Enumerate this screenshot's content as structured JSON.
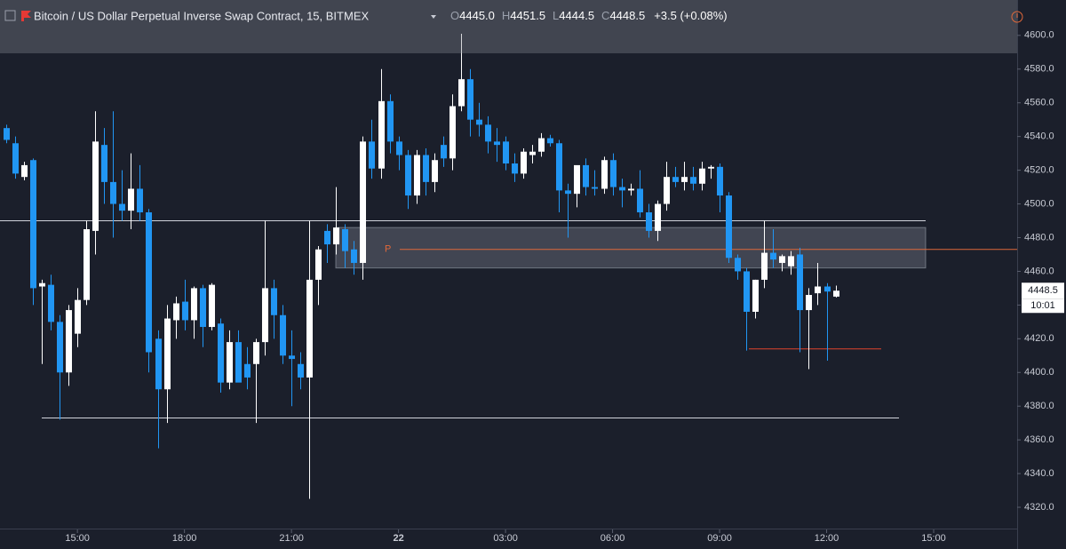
{
  "chart_data": {
    "type": "candlestick",
    "title": "Bitcoin / US Dollar Perpetual Inverse Swap Contract, 15, BITMEX",
    "header": {
      "o": "O",
      "open": "4445.0",
      "h": "H",
      "high": "4451.5",
      "l": "L",
      "low": "4444.5",
      "c": "C",
      "close": "4448.5",
      "change": "+3.5 (+0.08%)"
    },
    "x": [
      13,
      13.25,
      13.5,
      13.75,
      14,
      14.25,
      14.5,
      14.75,
      15,
      15.25,
      15.5,
      15.75,
      16,
      16.25,
      16.5,
      16.75,
      17,
      17.25,
      17.5,
      17.75,
      18,
      18.25,
      18.5,
      18.75,
      19,
      19.25,
      19.5,
      19.75,
      20,
      20.25,
      20.5,
      20.75,
      21,
      21.25,
      21.5,
      21.75,
      22,
      22.25,
      22.5,
      22.75,
      23,
      23.25,
      23.5,
      23.75,
      24,
      24.25,
      24.5,
      24.75,
      25,
      25.25,
      25.5,
      25.75,
      26,
      26.25,
      26.5,
      26.75,
      27,
      27.25,
      27.5,
      27.75,
      28,
      28.25,
      28.5,
      28.75,
      29,
      29.25,
      29.5,
      29.75,
      30,
      30.25,
      30.5,
      30.75,
      31,
      31.25,
      31.5,
      31.75,
      32,
      32.25,
      32.5,
      32.75,
      33,
      33.25,
      33.5,
      33.75,
      34,
      34.25,
      34.5,
      34.75,
      35,
      35.25,
      35.5,
      35.75,
      36,
      36.25
    ],
    "open": [
      4545,
      4536,
      4516,
      4526,
      4451,
      4452,
      4430,
      4400,
      4423,
      4443,
      4484,
      4535,
      4513,
      4500,
      4496,
      4509,
      4495,
      4420,
      4390,
      4431,
      4442,
      4431,
      4450,
      4427,
      4429,
      4394,
      4418,
      4405,
      4405,
      4418,
      4450,
      4434,
      4410,
      4405,
      4397,
      4455,
      4484,
      4476,
      4485,
      4473,
      4465,
      4537,
      4521,
      4561,
      4537,
      4529,
      4505,
      4529,
      4513,
      4535,
      4527,
      4558,
      4574,
      4550,
      4547,
      4537,
      4537,
      4524,
      4518,
      4529,
      4531,
      4539,
      4536,
      4508,
      4506,
      4523,
      4510,
      4509,
      4526,
      4510,
      4508,
      4509,
      4495,
      4484,
      4500,
      4516,
      4513,
      4516,
      4512,
      4521,
      4522,
      4505,
      4468,
      4460,
      4436,
      4455,
      4471,
      4465,
      4463,
      4470,
      4437,
      4447,
      4451,
      4445
    ],
    "high": [
      4547,
      4540,
      4525,
      4527,
      4455,
      4458,
      4434,
      4440,
      4450,
      4490,
      4555,
      4545,
      4555,
      4520,
      4530,
      4523,
      4497,
      4425,
      4440,
      4445,
      4455,
      4451,
      4452,
      4453,
      4432,
      4425,
      4425,
      4415,
      4420,
      4490,
      4455,
      4440,
      4425,
      4412,
      4490,
      4475,
      4488,
      4510,
      4488,
      4478,
      4540,
      4550,
      4580,
      4565,
      4540,
      4532,
      4532,
      4533,
      4530,
      4540,
      4565,
      4601,
      4580,
      4560,
      4552,
      4545,
      4540,
      4530,
      4533,
      4535,
      4542,
      4541,
      4538,
      4512,
      4520,
      4527,
      4520,
      4528,
      4530,
      4515,
      4512,
      4520,
      4500,
      4502,
      4525,
      4522,
      4525,
      4522,
      4525,
      4523,
      4524,
      4507,
      4470,
      4462,
      4455,
      4490,
      4485,
      4470,
      4472,
      4474,
      4450,
      4465,
      4453,
      4451.5
    ],
    "low": [
      4536,
      4515,
      4514,
      4440,
      4405,
      4425,
      4372,
      4392,
      4415,
      4440,
      4470,
      4500,
      4480,
      4490,
      4485,
      4490,
      4400,
      4355,
      4370,
      4420,
      4425,
      4420,
      4415,
      4425,
      4388,
      4390,
      4395,
      4390,
      4370,
      4410,
      4420,
      4405,
      4380,
      4390,
      4325,
      4440,
      4465,
      4470,
      4462,
      4458,
      4455,
      4515,
      4515,
      4530,
      4520,
      4497,
      4500,
      4505,
      4507,
      4522,
      4520,
      4555,
      4540,
      4540,
      4530,
      4525,
      4520,
      4513,
      4515,
      4524,
      4528,
      4534,
      4495,
      4480,
      4498,
      4505,
      4505,
      4506,
      4505,
      4498,
      4505,
      4492,
      4480,
      4478,
      4496,
      4510,
      4508,
      4508,
      4508,
      4515,
      4495,
      4465,
      4455,
      4413,
      4432,
      4450,
      4462,
      4460,
      4458,
      4412,
      4402,
      4440,
      4407,
      4444.5
    ],
    "close": [
      4538,
      4518,
      4523,
      4450,
      4453,
      4430,
      4400,
      4437,
      4443,
      4485,
      4537,
      4513,
      4500,
      4496,
      4509,
      4495,
      4412,
      4390,
      4432,
      4441,
      4431,
      4450,
      4427,
      4452,
      4394,
      4418,
      4394,
      4397,
      4418,
      4450,
      4434,
      4410,
      4408,
      4397,
      4455,
      4473,
      4476,
      4486,
      4472,
      4465,
      4537,
      4521,
      4561,
      4537,
      4529,
      4505,
      4529,
      4513,
      4526,
      4527,
      4558,
      4574,
      4550,
      4547,
      4537,
      4535,
      4524,
      4518,
      4531,
      4531,
      4539,
      4536,
      4508,
      4506,
      4523,
      4510,
      4509,
      4526,
      4510,
      4508,
      4509,
      4495,
      4484,
      4500,
      4516,
      4513,
      4516,
      4512,
      4521,
      4522,
      4505,
      4468,
      4460,
      4436,
      4455,
      4471,
      4467,
      4469,
      4469,
      4437,
      4446,
      4451,
      4448,
      4448.5
    ],
    "up_color": "#ffffff",
    "down_color": "#2196f3",
    "xlim": [
      12.83,
      41.34
    ],
    "xticks": [
      {
        "value": 15,
        "label": "15:00"
      },
      {
        "value": 18,
        "label": "18:00"
      },
      {
        "value": 21,
        "label": "21:00"
      },
      {
        "value": 24,
        "label": "22"
      },
      {
        "value": 27,
        "label": "03:00"
      },
      {
        "value": 30,
        "label": "06:00"
      },
      {
        "value": 33,
        "label": "09:00"
      },
      {
        "value": 36,
        "label": "12:00"
      },
      {
        "value": 39,
        "label": "15:00"
      }
    ],
    "ylim": [
      4310,
      4621
    ],
    "yticks": [
      {
        "value": 4320,
        "label": "4320.0"
      },
      {
        "value": 4340,
        "label": "4340.0"
      },
      {
        "value": 4360,
        "label": "4360.0"
      },
      {
        "value": 4380,
        "label": "4380.0"
      },
      {
        "value": 4400,
        "label": "4400.0"
      },
      {
        "value": 4420,
        "label": "4420.0"
      },
      {
        "value": 4440,
        "label": "4440.0"
      },
      {
        "value": 4460,
        "label": "4460.0"
      },
      {
        "value": 4480,
        "label": "4480.0"
      },
      {
        "value": 4500,
        "label": "4500.0"
      },
      {
        "value": 4520,
        "label": "4520.0"
      },
      {
        "value": 4540,
        "label": "4540.0"
      },
      {
        "value": 4560,
        "label": "4560.0"
      },
      {
        "value": 4580,
        "label": "4580.0"
      },
      {
        "value": 4600,
        "label": "4600.0"
      }
    ],
    "last_price": 4448.5,
    "last_price_label": "4448.5",
    "countdown": "10:01",
    "lines": [
      {
        "price": 4490,
        "color": "#d1d4dc"
      },
      {
        "price": 4373,
        "color": "#d1d4dc"
      },
      {
        "price": 4473,
        "color": "#e0683a"
      },
      {
        "price": 4414,
        "color": "#e0442c"
      }
    ],
    "zone": {
      "low": 4462,
      "high": 4486
    },
    "marker_label": "P"
  }
}
